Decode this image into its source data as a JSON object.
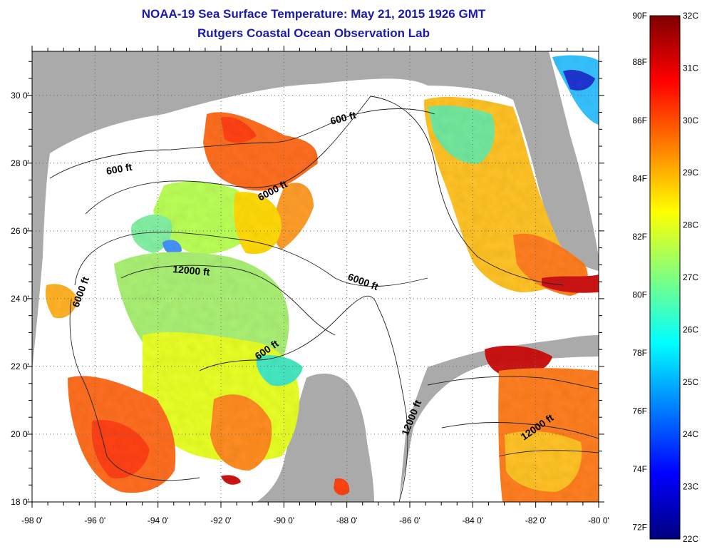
{
  "title": "NOAA-19 Sea Surface Temperature:  May 21, 2015 1926 GMT",
  "subtitle": "Rutgers Coastal Ocean Observation Lab",
  "map": {
    "lon_ticks": [
      "-98 0'",
      "-96 0'",
      "-94 0'",
      "-92 0'",
      "-90 0'",
      "-88 0'",
      "-86 0'",
      "-84 0'",
      "-82 0'",
      "-80 0'"
    ],
    "lat_ticks": [
      "18 0'",
      "20 0'",
      "22 0'",
      "24 0'",
      "26 0'",
      "28 0'",
      "30 0'"
    ],
    "contour_labels": [
      "600 ft",
      "600 ft",
      "6000 ft",
      "12000 ft",
      "6000 ft",
      "6000 ft",
      "600 ft",
      "12000 ft",
      "12000 ft"
    ],
    "colors": {
      "land": "#aaaaaa",
      "cloud": "#ffffff",
      "grid": "#666666"
    }
  },
  "colorbar": {
    "fahrenheit_labels": [
      "90F",
      "88F",
      "86F",
      "84F",
      "82F",
      "80F",
      "78F",
      "76F",
      "74F",
      "72F"
    ],
    "celsius_labels": [
      "32C",
      "31C",
      "30C",
      "29C",
      "28C",
      "27C",
      "26C",
      "25C",
      "24C",
      "23C",
      "22C"
    ],
    "gradient": [
      "#00007f",
      "#0000ff",
      "#007fff",
      "#00ffff",
      "#7fff7f",
      "#ffff00",
      "#ff7f00",
      "#ff0000",
      "#7f0000"
    ]
  }
}
